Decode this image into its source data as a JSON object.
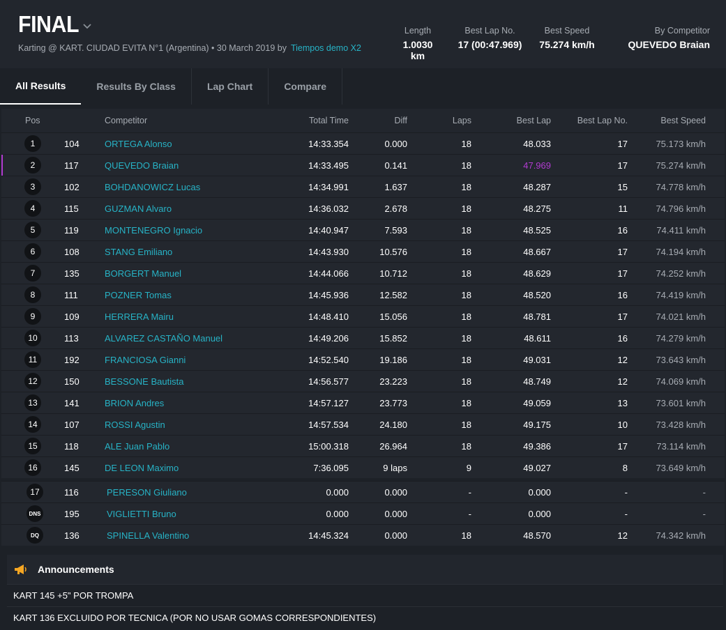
{
  "header": {
    "title": "FINAL",
    "subtitle_text": "Karting @ KART. CIUDAD EVITA N°1 (Argentina) • 30 March 2019 by",
    "subtitle_link": "Tiempos demo X2",
    "stats": [
      {
        "label": "Length",
        "value": "1.0030 km"
      },
      {
        "label": "Best Lap No.",
        "value": "17 (00:47.969)"
      },
      {
        "label": "Best Speed",
        "value": "75.274 km/h"
      },
      {
        "label": "By Competitor",
        "value": "QUEVEDO Braian"
      }
    ]
  },
  "tabs": [
    {
      "label": "All Results",
      "active": true
    },
    {
      "label": "Results By Class",
      "active": false
    },
    {
      "label": "Lap Chart",
      "active": false
    },
    {
      "label": "Compare",
      "active": false
    }
  ],
  "table": {
    "columns": {
      "pos": "Pos",
      "competitor": "Competitor",
      "total": "Total Time",
      "diff": "Diff",
      "laps": "Laps",
      "best": "Best Lap",
      "bestno": "Best Lap No.",
      "speed": "Best Speed"
    },
    "rows": [
      {
        "pos": "1",
        "num": "104",
        "name": "ORTEGA Alonso",
        "total": "14:33.354",
        "diff": "0.000",
        "laps": "18",
        "best": "48.033",
        "bestno": "17",
        "speed": "75.173 km/h"
      },
      {
        "pos": "2",
        "num": "117",
        "name": "QUEVEDO Braian",
        "total": "14:33.495",
        "diff": "0.141",
        "laps": "18",
        "best": "47.969",
        "bestno": "17",
        "speed": "75.274 km/h"
      },
      {
        "pos": "3",
        "num": "102",
        "name": "BOHDANOWICZ Lucas",
        "total": "14:34.991",
        "diff": "1.637",
        "laps": "18",
        "best": "48.287",
        "bestno": "15",
        "speed": "74.778 km/h"
      },
      {
        "pos": "4",
        "num": "115",
        "name": "GUZMAN Alvaro",
        "total": "14:36.032",
        "diff": "2.678",
        "laps": "18",
        "best": "48.275",
        "bestno": "11",
        "speed": "74.796 km/h"
      },
      {
        "pos": "5",
        "num": "119",
        "name": "MONTENEGRO Ignacio",
        "total": "14:40.947",
        "diff": "7.593",
        "laps": "18",
        "best": "48.525",
        "bestno": "16",
        "speed": "74.411 km/h"
      },
      {
        "pos": "6",
        "num": "108",
        "name": "STANG Emiliano",
        "total": "14:43.930",
        "diff": "10.576",
        "laps": "18",
        "best": "48.667",
        "bestno": "17",
        "speed": "74.194 km/h"
      },
      {
        "pos": "7",
        "num": "135",
        "name": "BORGERT Manuel",
        "total": "14:44.066",
        "diff": "10.712",
        "laps": "18",
        "best": "48.629",
        "bestno": "17",
        "speed": "74.252 km/h"
      },
      {
        "pos": "8",
        "num": "111",
        "name": "POZNER Tomas",
        "total": "14:45.936",
        "diff": "12.582",
        "laps": "18",
        "best": "48.520",
        "bestno": "16",
        "speed": "74.419 km/h"
      },
      {
        "pos": "9",
        "num": "109",
        "name": "HERRERA Mairu",
        "total": "14:48.410",
        "diff": "15.056",
        "laps": "18",
        "best": "48.781",
        "bestno": "17",
        "speed": "74.021 km/h"
      },
      {
        "pos": "10",
        "num": "113",
        "name": "ALVAREZ CASTAÑO Manuel",
        "total": "14:49.206",
        "diff": "15.852",
        "laps": "18",
        "best": "48.611",
        "bestno": "16",
        "speed": "74.279 km/h"
      },
      {
        "pos": "11",
        "num": "192",
        "name": "FRANCIOSA Gianni",
        "total": "14:52.540",
        "diff": "19.186",
        "laps": "18",
        "best": "49.031",
        "bestno": "12",
        "speed": "73.643 km/h"
      },
      {
        "pos": "12",
        "num": "150",
        "name": "BESSONE Bautista",
        "total": "14:56.577",
        "diff": "23.223",
        "laps": "18",
        "best": "48.749",
        "bestno": "12",
        "speed": "74.069 km/h"
      },
      {
        "pos": "13",
        "num": "141",
        "name": "BRION Andres",
        "total": "14:57.127",
        "diff": "23.773",
        "laps": "18",
        "best": "49.059",
        "bestno": "13",
        "speed": "73.601 km/h"
      },
      {
        "pos": "14",
        "num": "107",
        "name": "ROSSI Agustin",
        "total": "14:57.534",
        "diff": "24.180",
        "laps": "18",
        "best": "49.175",
        "bestno": "10",
        "speed": "73.428 km/h"
      },
      {
        "pos": "15",
        "num": "118",
        "name": "ALE Juan Pablo",
        "total": "15:00.318",
        "diff": "26.964",
        "laps": "18",
        "best": "49.386",
        "bestno": "17",
        "speed": "73.114 km/h"
      },
      {
        "pos": "16",
        "num": "145",
        "name": "DE LEON Maximo",
        "total": "7:36.095",
        "diff": "9 laps",
        "laps": "9",
        "best": "49.027",
        "bestno": "8",
        "speed": "73.649 km/h"
      }
    ],
    "out_rows": [
      {
        "pos": "17",
        "num": "116",
        "name": "PERESON Giuliano",
        "total": "0.000",
        "diff": "0.000",
        "laps": "-",
        "best": "0.000",
        "bestno": "-",
        "speed": "-"
      },
      {
        "pos": "DNS",
        "num": "195",
        "name": "VIGLIETTI Bruno",
        "total": "0.000",
        "diff": "0.000",
        "laps": "-",
        "best": "0.000",
        "bestno": "-",
        "speed": "-"
      },
      {
        "pos": "DQ",
        "num": "136",
        "name": "SPINELLA Valentino",
        "total": "14:45.324",
        "diff": "0.000",
        "laps": "18",
        "best": "48.570",
        "bestno": "12",
        "speed": "74.342 km/h"
      }
    ]
  },
  "announcements": {
    "title": "Announcements",
    "items": [
      "KART 145 +5\" POR TROMPA",
      "KART 136 EXCLUIDO POR TECNICA (POR NO USAR GOMAS CORRESPONDIENTES)"
    ]
  },
  "colors": {
    "accent": "#27b3c6",
    "best": "#b13bd1",
    "megaphone": "#f5a623"
  }
}
